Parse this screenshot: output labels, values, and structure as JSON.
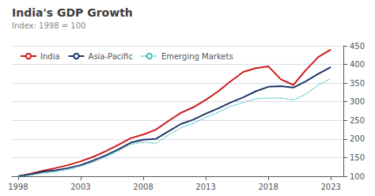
{
  "chart_data": {
    "type": "line",
    "title": "India's GDP Growth",
    "subtitle": "Index: 1998 = 100",
    "x": [
      1998,
      1999,
      2000,
      2001,
      2002,
      2003,
      2004,
      2005,
      2006,
      2007,
      2008,
      2009,
      2010,
      2011,
      2012,
      2013,
      2014,
      2015,
      2016,
      2017,
      2018,
      2019,
      2020,
      2021,
      2022,
      2023
    ],
    "series": [
      {
        "name": "India",
        "color": "#cc1a1a",
        "line_style": "solid",
        "values": [
          100,
          107,
          115,
          122,
          130,
          140,
          152,
          167,
          184,
          202,
          212,
          225,
          248,
          270,
          285,
          305,
          328,
          355,
          380,
          390,
          395,
          360,
          345,
          385,
          420,
          440
        ]
      },
      {
        "name": "Asia-Pacific",
        "color": "#1f3468",
        "line_style": "solid",
        "values": [
          100,
          105,
          112,
          116,
          122,
          130,
          142,
          156,
          172,
          190,
          198,
          200,
          220,
          240,
          252,
          268,
          282,
          298,
          312,
          328,
          340,
          342,
          338,
          355,
          375,
          393
        ]
      },
      {
        "name": "Emerging Markets",
        "color": "#3cbfbf",
        "line_style": "dotted",
        "values": [
          100,
          103,
          108,
          112,
          118,
          127,
          138,
          152,
          168,
          185,
          192,
          188,
          210,
          230,
          242,
          258,
          272,
          288,
          298,
          308,
          310,
          310,
          305,
          320,
          345,
          362
        ]
      }
    ],
    "xlim": [
      1997.5,
      2024
    ],
    "xticks": [
      1998,
      2003,
      2008,
      2013,
      2018,
      2023
    ],
    "ylim": [
      100,
      450
    ],
    "yticks": [
      100,
      150,
      200,
      250,
      300,
      350,
      400,
      450
    ],
    "grid": "y",
    "legend": "upper left"
  }
}
